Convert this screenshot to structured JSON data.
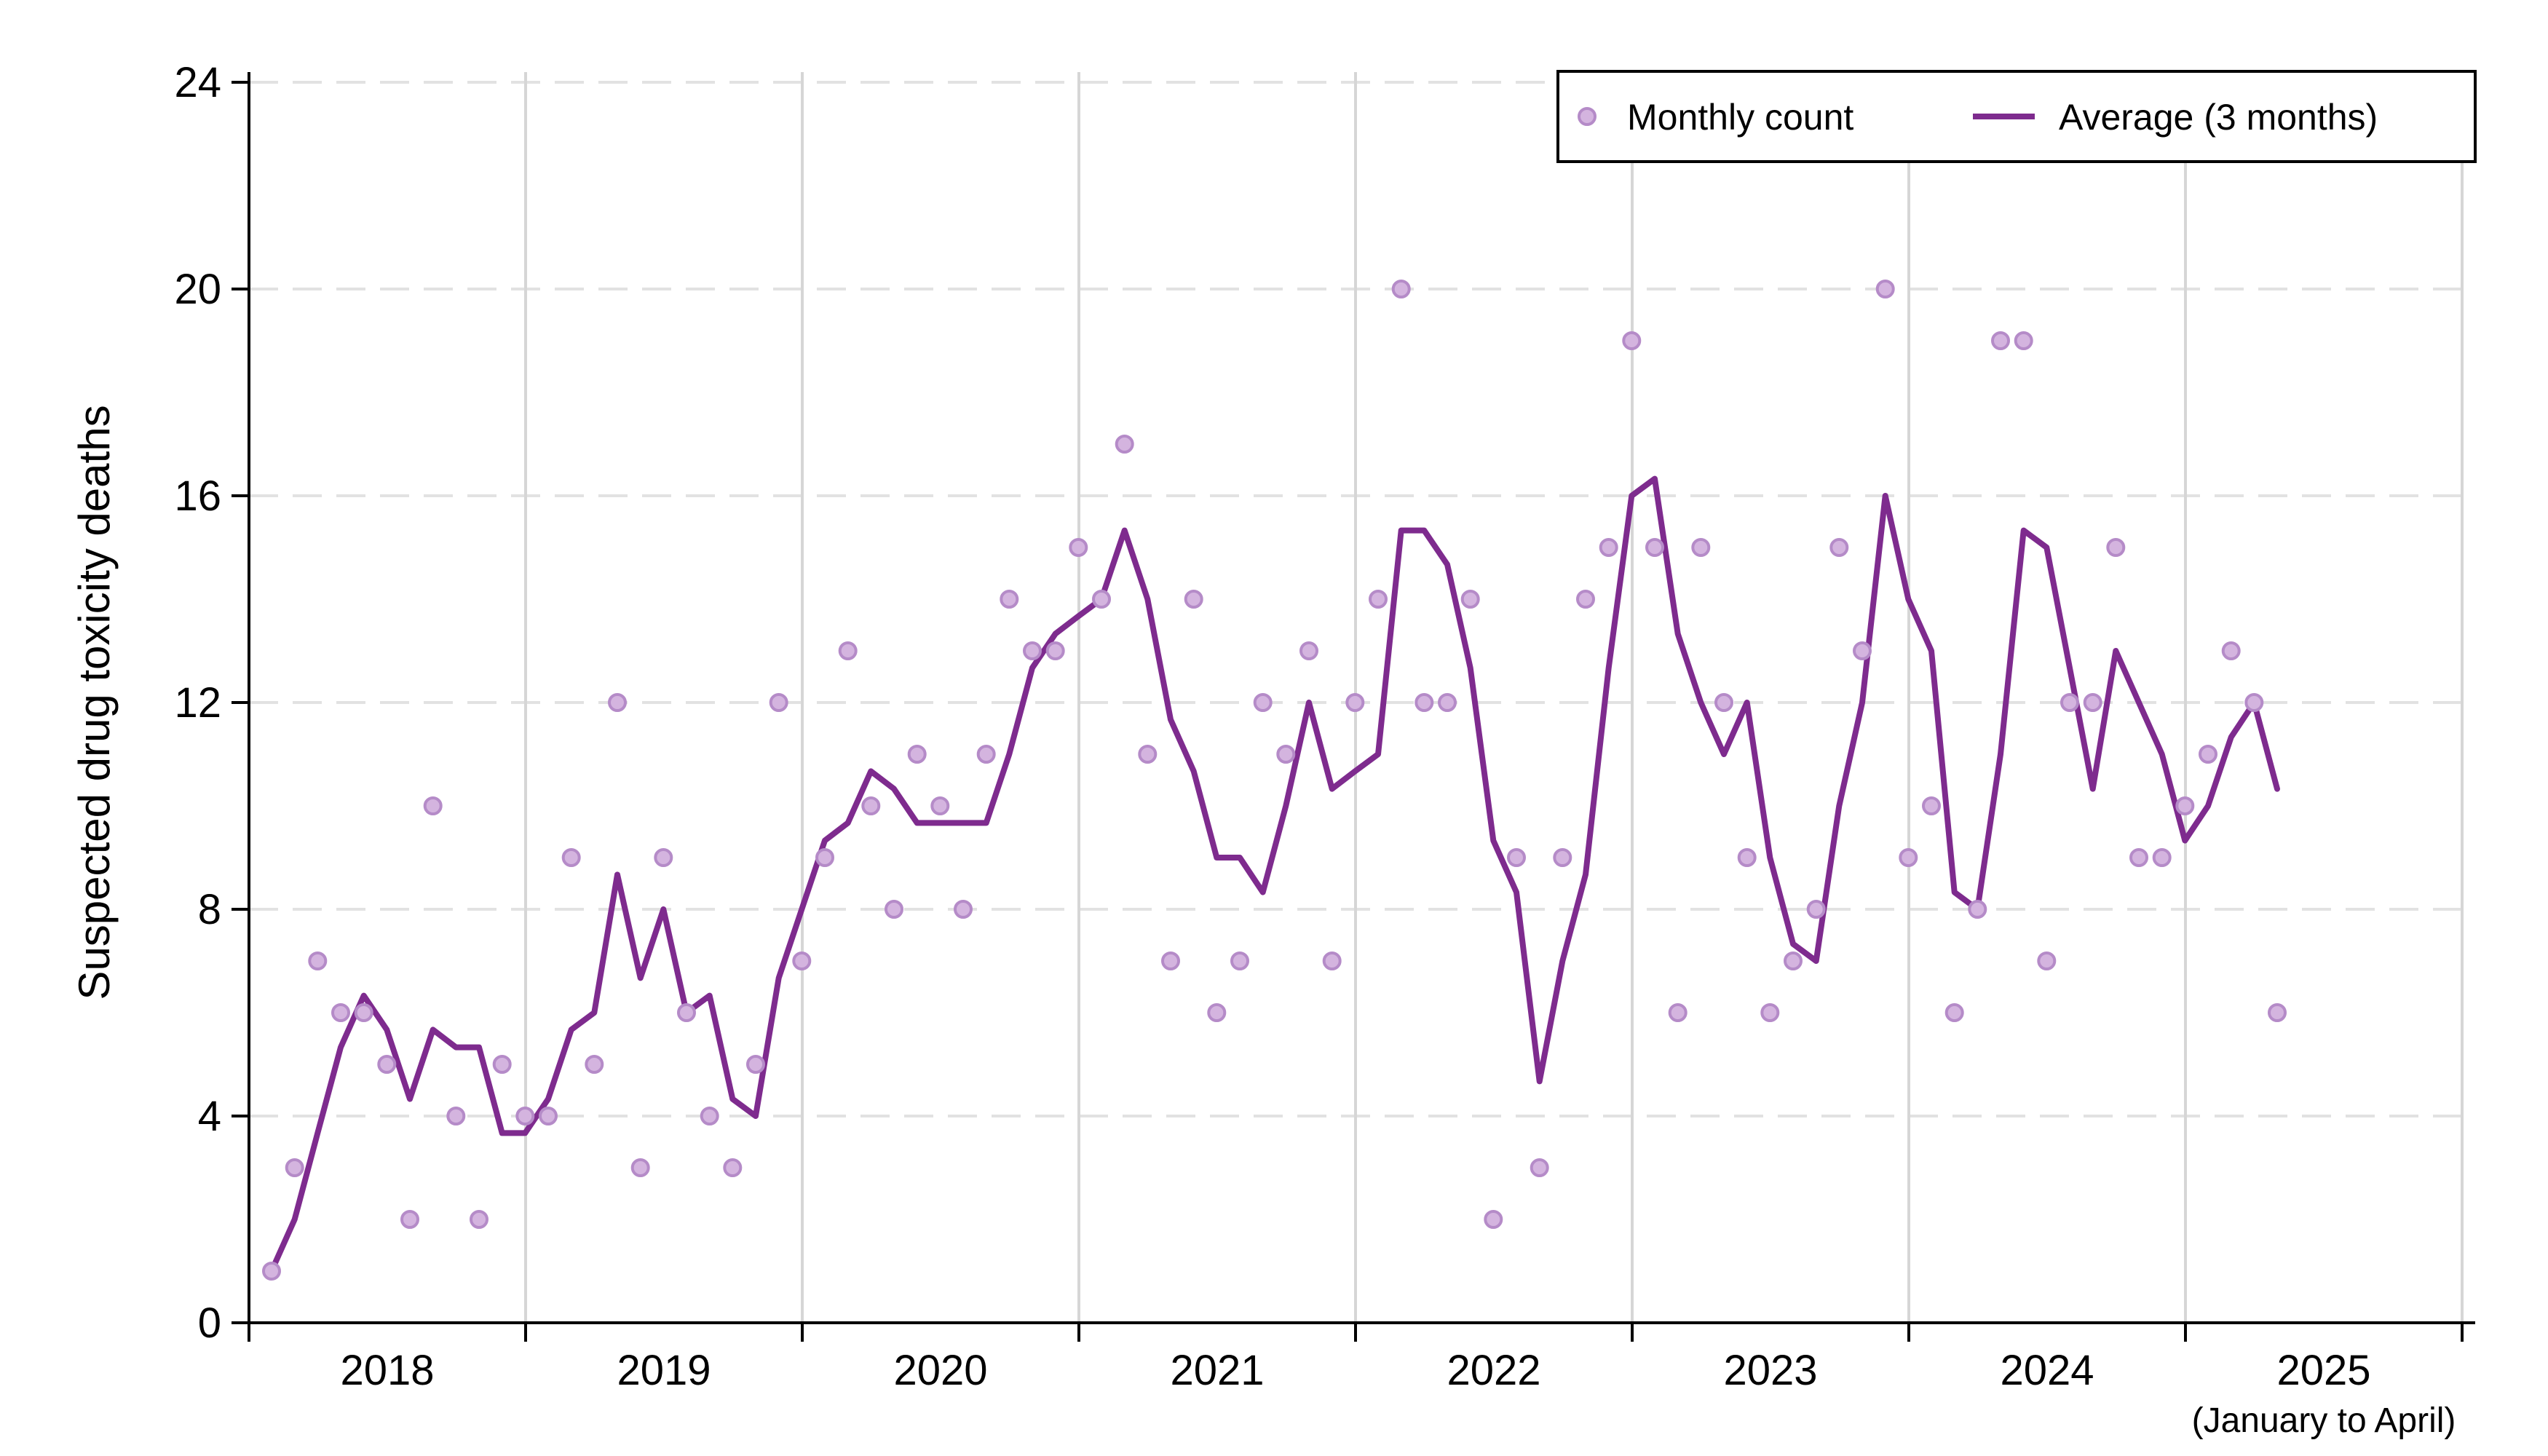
{
  "chart_data": {
    "type": "line",
    "ylabel": "Suspected drug toxicity deaths",
    "ylim": [
      0,
      24
    ],
    "yticks": [
      "0",
      "4",
      "8",
      "12",
      "16",
      "20",
      "24"
    ],
    "years": [
      "2018",
      "2019",
      "2020",
      "2021",
      "2022",
      "2023",
      "2024",
      "2025"
    ],
    "last_year_note": "(January to April)",
    "grid": {
      "horizontal": "dashed",
      "vertical": "solid"
    },
    "legend": {
      "placement": "top-right",
      "entries": [
        "Monthly count",
        "Average (3 months)"
      ]
    },
    "colors": {
      "points": "#d4b4df",
      "points_stroke": "#b58bc8",
      "line": "#7e2b8e"
    },
    "x_start": "2018-01",
    "series": [
      {
        "name": "Monthly count",
        "kind": "scatter",
        "values": [
          1,
          3,
          7,
          6,
          6,
          5,
          2,
          10,
          4,
          2,
          5,
          4,
          4,
          9,
          5,
          12,
          3,
          9,
          6,
          4,
          3,
          5,
          12,
          7,
          9,
          13,
          10,
          8,
          11,
          10,
          8,
          11,
          14,
          13,
          13,
          15,
          14,
          17,
          11,
          7,
          14,
          6,
          7,
          12,
          11,
          13,
          7,
          12,
          14,
          20,
          12,
          12,
          14,
          2,
          9,
          3,
          9,
          14,
          15,
          19,
          15,
          6,
          15,
          12,
          9,
          6,
          7,
          8,
          15,
          13,
          20,
          9,
          10,
          6,
          8,
          19,
          19,
          7,
          12,
          12,
          15,
          9,
          9,
          10,
          11,
          13,
          12,
          6
        ]
      },
      {
        "name": "Average (3 months)",
        "kind": "line",
        "values": [
          1,
          2,
          3.67,
          5.33,
          6.33,
          5.67,
          4.33,
          5.67,
          5.33,
          5.33,
          3.67,
          3.67,
          4.33,
          5.67,
          6,
          8.67,
          6.67,
          8,
          6,
          6.33,
          4.33,
          4,
          6.67,
          8,
          9.33,
          9.67,
          10.67,
          10.33,
          9.67,
          9.67,
          9.67,
          9.67,
          11,
          12.67,
          13.33,
          13.67,
          14,
          15.33,
          14,
          11.67,
          10.67,
          9,
          9,
          8.33,
          10,
          12,
          10.33,
          10.67,
          11,
          15.33,
          15.33,
          14.67,
          12.67,
          9.33,
          8.33,
          4.67,
          7,
          8.67,
          12.67,
          16,
          16.33,
          13.33,
          12,
          11,
          12,
          9,
          7.33,
          7,
          10,
          12,
          16,
          14,
          13,
          8.33,
          8,
          11,
          15.33,
          15,
          12.67,
          10.33,
          13,
          12,
          11,
          9.33,
          10,
          11.33,
          12,
          10.33
        ]
      }
    ]
  }
}
